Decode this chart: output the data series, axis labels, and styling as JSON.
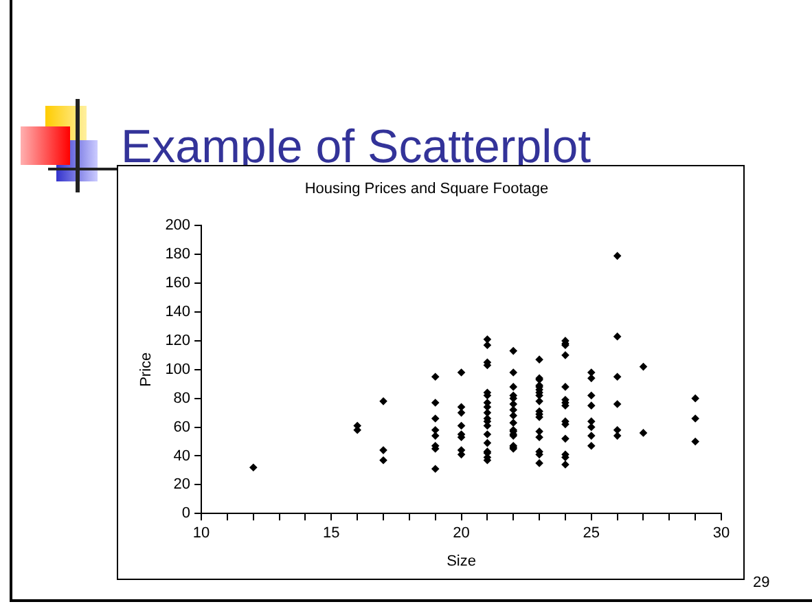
{
  "chart_data": {
    "type": "scatter",
    "title": "Example of Scatterplot",
    "subtitle": "Housing Prices and Square Footage",
    "xlabel": "Size",
    "ylabel": "Price",
    "annotations": [
      "29"
    ],
    "series": [
      {
        "color": "#000000",
        "x": [
          12,
          16,
          16,
          17,
          17,
          17,
          19,
          19,
          19,
          19,
          19,
          19,
          19,
          19,
          20,
          20,
          20,
          20,
          20,
          20,
          20,
          20,
          21,
          21,
          21,
          21,
          21,
          21,
          21,
          21,
          21,
          21,
          21,
          21,
          21,
          21,
          21,
          21,
          21,
          21,
          22,
          22,
          22,
          22,
          22,
          22,
          22,
          22,
          22,
          22,
          22,
          22,
          22,
          22,
          22,
          22,
          23,
          23,
          23,
          23,
          23,
          23,
          23,
          23,
          23,
          23,
          23,
          23,
          23,
          23,
          23,
          23,
          23,
          24,
          24,
          24,
          24,
          24,
          24,
          24,
          24,
          24,
          24,
          24,
          24,
          24,
          24,
          25,
          25,
          25,
          25,
          25,
          25,
          25,
          25,
          26,
          26,
          26,
          26,
          26,
          26,
          27,
          27,
          29,
          29,
          29
        ],
        "values": [
          32,
          61,
          58,
          78,
          44,
          37,
          95,
          77,
          66,
          58,
          54,
          47,
          45,
          31,
          98,
          74,
          70,
          61,
          55,
          53,
          44,
          41,
          121,
          117,
          105,
          103,
          84,
          82,
          77,
          74,
          70,
          66,
          64,
          61,
          55,
          49,
          43,
          42,
          39,
          37,
          113,
          98,
          88,
          82,
          80,
          76,
          72,
          68,
          63,
          58,
          57,
          55,
          54,
          47,
          46,
          45,
          107,
          94,
          93,
          89,
          88,
          86,
          84,
          82,
          78,
          71,
          69,
          67,
          57,
          53,
          43,
          41,
          35,
          120,
          118,
          117,
          110,
          88,
          79,
          77,
          75,
          64,
          62,
          52,
          41,
          39,
          34,
          98,
          94,
          82,
          75,
          64,
          60,
          54,
          47,
          179,
          123,
          95,
          76,
          58,
          54,
          102,
          56,
          80,
          66,
          50
        ]
      }
    ],
    "xlim": [
      10,
      30
    ],
    "xticks": [
      10,
      {
        "value": 11,
        "label": null
      },
      {
        "value": 12,
        "label": null
      },
      {
        "value": 13,
        "label": null
      },
      {
        "value": 14,
        "label": null
      },
      15,
      {
        "value": 16,
        "label": null
      },
      {
        "value": 17,
        "label": null
      },
      {
        "value": 18,
        "label": null
      },
      {
        "value": 19,
        "label": null
      },
      20,
      {
        "value": 21,
        "label": null
      },
      {
        "value": 22,
        "label": null
      },
      {
        "value": 23,
        "label": null
      },
      {
        "value": 24,
        "label": null
      },
      25,
      {
        "value": 26,
        "label": null
      },
      {
        "value": 27,
        "label": null
      },
      {
        "value": 28,
        "label": null
      },
      {
        "value": 29,
        "label": null
      },
      30
    ],
    "ylim": [
      0,
      200
    ],
    "yticks": [
      0,
      20,
      40,
      60,
      80,
      100,
      120,
      140,
      160,
      180,
      200
    ],
    "marker": "diamond",
    "grid": false,
    "legend": false
  }
}
